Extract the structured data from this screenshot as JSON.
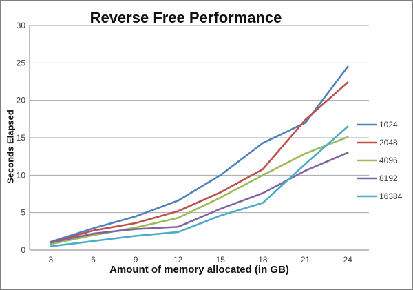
{
  "chart_data": {
    "type": "line",
    "title": "Reverse Free Performance",
    "xlabel": "Amount of memory allocated (in GB)",
    "ylabel": "Seconds Elapsed",
    "categories": [
      3,
      6,
      9,
      12,
      15,
      18,
      21,
      24
    ],
    "y_ticks": [
      0,
      5,
      10,
      15,
      20,
      25,
      30
    ],
    "ylim": [
      0,
      30
    ],
    "grid": true,
    "legend_position": "right",
    "colors": {
      "gridline": "#a6a6a6",
      "axis": "#808080",
      "tick_label": "#404040",
      "title": "#111111"
    },
    "series": [
      {
        "name": "1024",
        "color": "#4F81BD",
        "values": [
          1.1,
          2.9,
          4.5,
          6.6,
          10.0,
          14.3,
          17.0,
          24.5
        ]
      },
      {
        "name": "2048",
        "color": "#C0504D",
        "values": [
          1.0,
          2.6,
          3.6,
          5.2,
          7.7,
          10.8,
          17.4,
          22.4
        ]
      },
      {
        "name": "4096",
        "color": "#9BBB59",
        "values": [
          0.8,
          2.0,
          3.0,
          4.3,
          7.0,
          10.0,
          12.9,
          15.1
        ]
      },
      {
        "name": "8192",
        "color": "#8064A2",
        "values": [
          1.0,
          2.2,
          2.8,
          3.1,
          5.5,
          7.6,
          10.6,
          13.0
        ]
      },
      {
        "name": "16384",
        "color": "#4BACC6",
        "values": [
          0.5,
          1.2,
          1.9,
          2.4,
          4.6,
          6.3,
          11.5,
          16.5
        ]
      }
    ]
  }
}
